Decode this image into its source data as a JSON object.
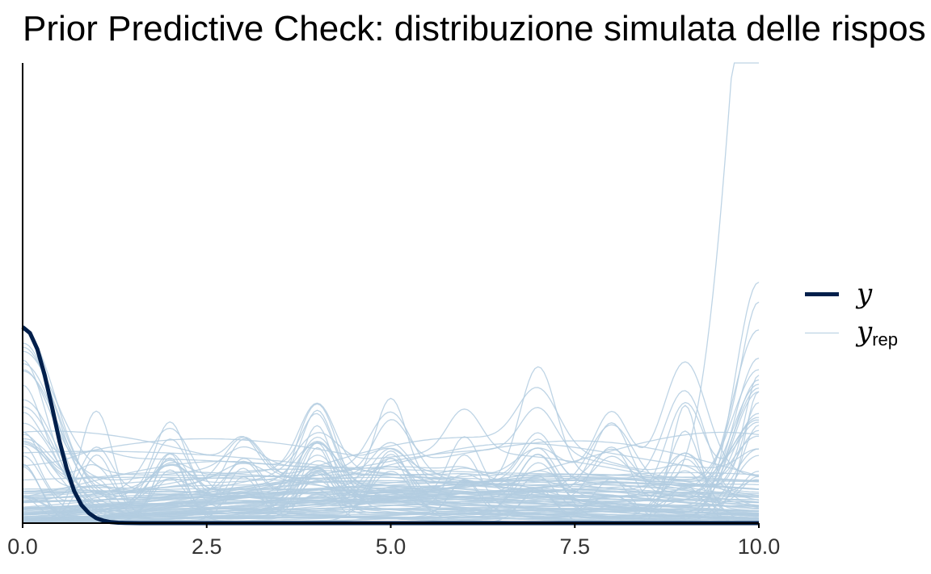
{
  "chart_data": {
    "type": "line",
    "title": "Prior Predictive Check: distribuzione simulata delle rispos",
    "xlabel": "",
    "ylabel": "",
    "xlim": [
      0,
      10
    ],
    "xticks": [
      "0.0",
      "2.5",
      "5.0",
      "7.5",
      "10.0"
    ],
    "grid": false,
    "legend": {
      "position": "right",
      "entries": [
        {
          "label": "y",
          "subscript": "",
          "color": "#011f4b"
        },
        {
          "label": "y",
          "subscript": "rep",
          "color": "#b3cde0"
        }
      ]
    },
    "series": [
      {
        "name": "y",
        "color": "#011f4b",
        "x": [
          0,
          0.1,
          0.2,
          0.3,
          0.4,
          0.5,
          0.6,
          0.7,
          0.8,
          0.9,
          1.0,
          1.1,
          1.2,
          1.3,
          1.4,
          1.6,
          2.0,
          3.0,
          5.0,
          7.5,
          10.0
        ],
        "y": [
          0.98,
          0.95,
          0.87,
          0.74,
          0.58,
          0.41,
          0.27,
          0.16,
          0.09,
          0.05,
          0.025,
          0.012,
          0.005,
          0.002,
          0.001,
          0,
          0,
          0,
          0,
          0,
          0
        ]
      }
    ],
    "rep_draws": {
      "name": "y_rep",
      "color": "#b3cde0",
      "count": 100,
      "description": "simulated response distributions on 0-10 with bumps near integer values"
    }
  }
}
